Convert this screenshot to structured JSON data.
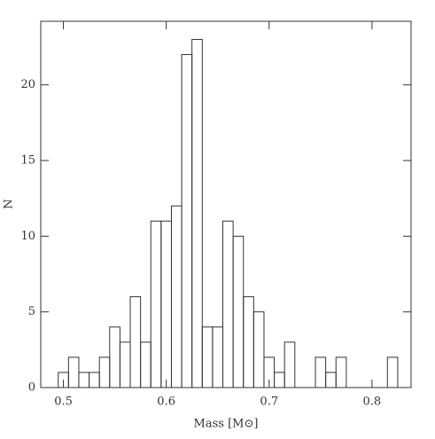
{
  "chart_data": {
    "type": "histogram",
    "xlabel": "Mass [M⊙]",
    "ylabel": "N",
    "bins": [
      0.495,
      0.505,
      0.515,
      0.525,
      0.535,
      0.545,
      0.555,
      0.565,
      0.575,
      0.585,
      0.595,
      0.605,
      0.615,
      0.625,
      0.635,
      0.645,
      0.655,
      0.665,
      0.675,
      0.685,
      0.695,
      0.705,
      0.715,
      0.725,
      0.735,
      0.745,
      0.755,
      0.765,
      0.775,
      0.785,
      0.795,
      0.805,
      0.815,
      0.825
    ],
    "values": [
      1,
      2,
      1,
      1,
      2,
      4,
      3,
      6,
      3,
      11,
      11,
      12,
      22,
      23,
      4,
      4,
      11,
      10,
      6,
      5,
      2,
      1,
      3,
      0,
      0,
      2,
      1,
      2,
      0,
      0,
      0,
      0,
      2
    ],
    "color": "#333333",
    "xlim": [
      0.478,
      0.838
    ],
    "ylim": [
      0,
      24.2
    ],
    "xticks": [
      0.5,
      0.6,
      0.7,
      0.8
    ],
    "yticks": [
      0,
      5,
      10,
      15,
      20
    ]
  }
}
